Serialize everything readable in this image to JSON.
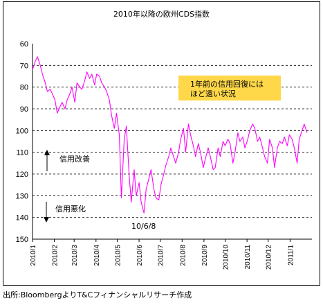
{
  "source_note": "出所:BloombergよりT&Cフィナンシャルリサーチ作成",
  "chart_data": {
    "type": "line",
    "title": "2010年以降の欧州CDS指数",
    "y_reversed": true,
    "ylim": [
      60,
      150
    ],
    "y_ticks": [
      60,
      70,
      80,
      90,
      100,
      110,
      120,
      130,
      140,
      150
    ],
    "x_ticks": [
      "2010/1",
      "2010/2",
      "2010/3",
      "2010/4",
      "2010/5",
      "2010/6",
      "2010/7",
      "2010/8",
      "2010/9",
      "2010/10",
      "2010/11",
      "2010/12",
      "2011/1"
    ],
    "grid": "horizontal dashed",
    "series_color": "#ff00ff",
    "annotations": {
      "box_text": [
        "1年前の信用回復には",
        "ほど遠い状況"
      ],
      "box_color": "#ffd84a",
      "up_label": "信用改善",
      "down_label": "信用悪化",
      "low_label": "10/6/8"
    },
    "series": [
      {
        "x": [
          "2010/1/1",
          "2010/1/5",
          "2010/1/8",
          "2010/1/12",
          "2010/1/15",
          "2010/1/19",
          "2010/1/22",
          "2010/1/26",
          "2010/1/29",
          "2010/2/2",
          "2010/2/5",
          "2010/2/9",
          "2010/2/12",
          "2010/2/16",
          "2010/2/19",
          "2010/2/23",
          "2010/2/26",
          "2010/3/2",
          "2010/3/5",
          "2010/3/9",
          "2010/3/12",
          "2010/3/16",
          "2010/3/19",
          "2010/3/23",
          "2010/3/26",
          "2010/3/30",
          "2010/4/2",
          "2010/4/6",
          "2010/4/9",
          "2010/4/13",
          "2010/4/16",
          "2010/4/20",
          "2010/4/23",
          "2010/4/27",
          "2010/4/30",
          "2010/5/4",
          "2010/5/7",
          "2010/5/11",
          "2010/5/14",
          "2010/5/18",
          "2010/5/21",
          "2010/5/25",
          "2010/5/28",
          "2010/6/1",
          "2010/6/4",
          "2010/6/8",
          "2010/6/11",
          "2010/6/15",
          "2010/6/18",
          "2010/6/22",
          "2010/6/25",
          "2010/6/29",
          "2010/7/2",
          "2010/7/6",
          "2010/7/9",
          "2010/7/13",
          "2010/7/16",
          "2010/7/20",
          "2010/7/23",
          "2010/7/27",
          "2010/7/30",
          "2010/8/3",
          "2010/8/6",
          "2010/8/10",
          "2010/8/13",
          "2010/8/17",
          "2010/8/20",
          "2010/8/24",
          "2010/8/27",
          "2010/8/31",
          "2010/9/3",
          "2010/9/7",
          "2010/9/10",
          "2010/9/14",
          "2010/9/17",
          "2010/9/21",
          "2010/9/24",
          "2010/9/28",
          "2010/10/1",
          "2010/10/5",
          "2010/10/8",
          "2010/10/12",
          "2010/10/15",
          "2010/10/19",
          "2010/10/22",
          "2010/10/26",
          "2010/10/29",
          "2010/11/2",
          "2010/11/5",
          "2010/11/9",
          "2010/11/12",
          "2010/11/16",
          "2010/11/19",
          "2010/11/23",
          "2010/11/26",
          "2010/11/30",
          "2010/12/3",
          "2010/12/7",
          "2010/12/10",
          "2010/12/14",
          "2010/12/17",
          "2010/12/21",
          "2010/12/24",
          "2010/12/28",
          "2010/12/31",
          "2011/1/4",
          "2011/1/7",
          "2011/1/11",
          "2011/1/14",
          "2011/1/18",
          "2011/1/21",
          "2011/1/25"
        ],
        "values": [
          72,
          68,
          66,
          70,
          74,
          78,
          82,
          81,
          83,
          86,
          92,
          89,
          87,
          90,
          86,
          83,
          80,
          87,
          78,
          80,
          81,
          77,
          73,
          76,
          74,
          79,
          74,
          75,
          78,
          80,
          82,
          86,
          93,
          99,
          92,
          102,
          131,
          104,
          98,
          121,
          133,
          118,
          130,
          124,
          133,
          138,
          127,
          122,
          118,
          127,
          131,
          132,
          125,
          120,
          116,
          112,
          108,
          112,
          115,
          110,
          104,
          99,
          110,
          97,
          102,
          107,
          112,
          106,
          110,
          117,
          113,
          108,
          112,
          118,
          117,
          108,
          112,
          105,
          107,
          104,
          106,
          115,
          110,
          101,
          105,
          103,
          108,
          104,
          100,
          97,
          99,
          105,
          103,
          108,
          112,
          115,
          104,
          108,
          117,
          108,
          105,
          106,
          103,
          107,
          102,
          104,
          108,
          115,
          104,
          100,
          97,
          101
        ]
      }
    ]
  }
}
